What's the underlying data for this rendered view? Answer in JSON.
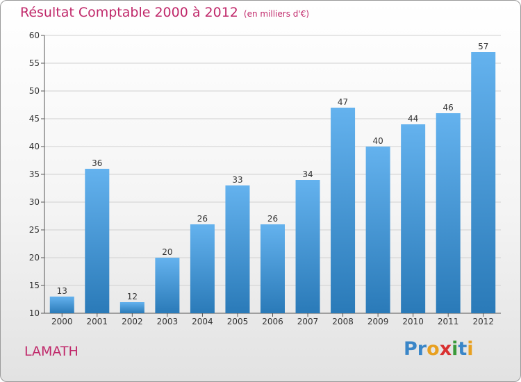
{
  "title": {
    "main": "Résultat Comptable 2000 à 2012",
    "sub": "(en milliers d'€)"
  },
  "town": "LAMATH",
  "logo": {
    "text": "Proxiti",
    "letters": [
      {
        "ch": "P",
        "color": "#3a86c8"
      },
      {
        "ch": "r",
        "color": "#3a86c8"
      },
      {
        "ch": "o",
        "color": "#e8a020"
      },
      {
        "ch": "x",
        "color": "#d93030"
      },
      {
        "ch": "i",
        "color": "#3a9a3a"
      },
      {
        "ch": "t",
        "color": "#3a86c8"
      },
      {
        "ch": "i",
        "color": "#e8a020"
      }
    ]
  },
  "colors": {
    "title": "#c0286a",
    "bar_light": "#64b2ee",
    "bar_dark": "#2a7ab8",
    "grid": "#d0d0d0",
    "axis": "#555555",
    "label": "#333333"
  },
  "chart_data": {
    "type": "bar",
    "title": "Résultat Comptable 2000 à 2012 (en milliers d'€)",
    "xlabel": "",
    "ylabel": "",
    "categories": [
      "2000",
      "2001",
      "2002",
      "2003",
      "2004",
      "2005",
      "2006",
      "2007",
      "2008",
      "2009",
      "2010",
      "2011",
      "2012"
    ],
    "values": [
      13,
      36,
      12,
      20,
      26,
      33,
      26,
      34,
      47,
      40,
      44,
      46,
      57
    ],
    "ylim": [
      10,
      60
    ],
    "yticks": [
      10,
      15,
      20,
      25,
      30,
      35,
      40,
      45,
      50,
      55,
      60
    ],
    "grid": true
  }
}
